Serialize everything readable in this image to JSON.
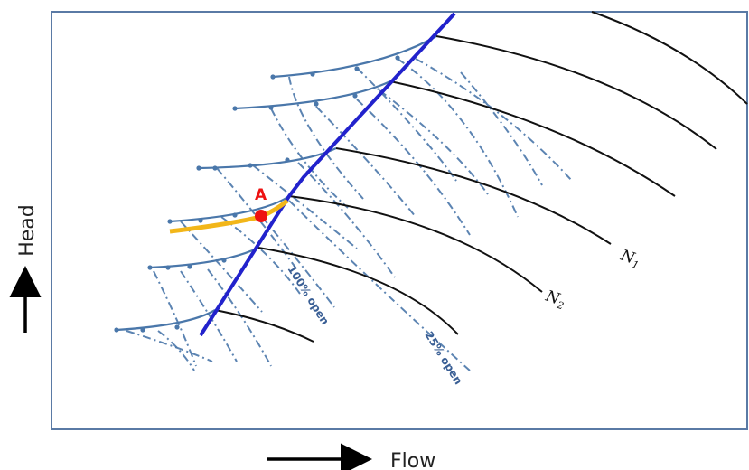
{
  "chart_data": {
    "type": "line",
    "title": "",
    "xlabel": "Flow",
    "ylabel": "Head",
    "grid": false,
    "colors": {
      "frame": "#5a7aa5",
      "speed_curves": "#111111",
      "surge_line": "#2222cc",
      "stall_curves": "#4a77aa",
      "valve_lines": "#4a77aa",
      "system_curve": "#f2b619",
      "operating_point": "#ee1111"
    },
    "curve_labels": [
      {
        "name": "N",
        "subscript": "1"
      },
      {
        "name": "N",
        "subscript": "2"
      }
    ],
    "valve_labels": [
      "100% open",
      "25% open"
    ],
    "operating_point_label": "A"
  }
}
